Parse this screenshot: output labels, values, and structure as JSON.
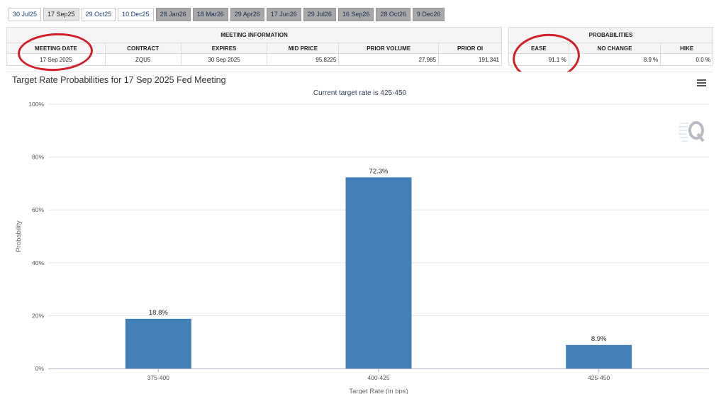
{
  "tabs": [
    {
      "label": "30 Jul25",
      "state": "normal"
    },
    {
      "label": "17 Sep25",
      "state": "active"
    },
    {
      "label": "29 Oct25",
      "state": "normal"
    },
    {
      "label": "10 Dec25",
      "state": "normal"
    },
    {
      "label": "28 Jan26",
      "state": "future"
    },
    {
      "label": "18 Mar26",
      "state": "future"
    },
    {
      "label": "29 Apr26",
      "state": "future"
    },
    {
      "label": "17 Jun26",
      "state": "future"
    },
    {
      "label": "29 Jul26",
      "state": "future"
    },
    {
      "label": "16 Sep26",
      "state": "future"
    },
    {
      "label": "28 Oct26",
      "state": "future"
    },
    {
      "label": "9 Dec26",
      "state": "future"
    }
  ],
  "meeting_info": {
    "title": "MEETING INFORMATION",
    "headers": [
      "MEETING DATE",
      "CONTRACT",
      "EXPIRES",
      "MID PRICE",
      "PRIOR VOLUME",
      "PRIOR OI"
    ],
    "row": [
      "17 Sep 2025",
      "ZQU5",
      "30 Sep 2025",
      "95.8225",
      "27,985",
      "191,341"
    ]
  },
  "probabilities": {
    "title": "PROBABILITIES",
    "headers": [
      "EASE",
      "NO CHANGE",
      "HIKE"
    ],
    "row": [
      "91.1 %",
      "8.9 %",
      "0.0 %"
    ]
  },
  "colors": {
    "bar": "#4380b8",
    "annotation": "#d0202a",
    "grid": "#e6e6e6"
  },
  "chart_data": {
    "type": "bar",
    "title": "Target Rate Probabilities for 17 Sep 2025 Fed Meeting",
    "subtitle": "Current target rate is 425-450",
    "xlabel": "Target Rate (in bps)",
    "ylabel": "Probability",
    "categories": [
      "375-400",
      "400-425",
      "425-450"
    ],
    "values": [
      18.8,
      72.3,
      8.9
    ],
    "data_labels": [
      "18.8%",
      "72.3%",
      "8.9%"
    ],
    "ylim": [
      0,
      100
    ],
    "yticks": [
      0,
      20,
      40,
      60,
      80,
      100
    ],
    "ytick_labels": [
      "0%",
      "20%",
      "40%",
      "60%",
      "80%",
      "100%"
    ],
    "grid": true,
    "legend": "none"
  }
}
